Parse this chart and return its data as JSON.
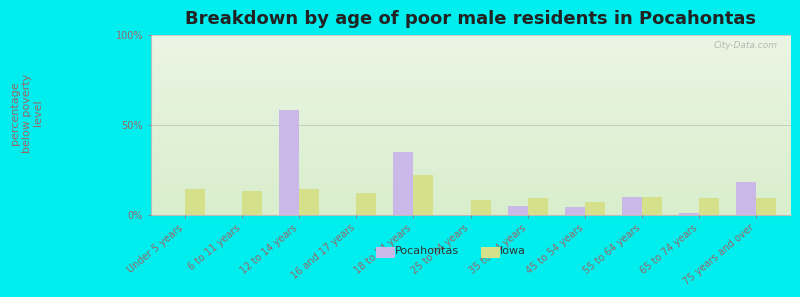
{
  "title": "Breakdown by age of poor male residents in Pocahontas",
  "ylabel": "percentage\nbelow poverty\nlevel",
  "categories": [
    "Under 5 years",
    "6 to 11 years",
    "12 to 14 years",
    "16 and 17 years",
    "18 to 24 years",
    "25 to 34 years",
    "35 to 44 years",
    "45 to 54 years",
    "55 to 64 years",
    "65 to 74 years",
    "75 years and over"
  ],
  "pocahontas": [
    0,
    0,
    58,
    0,
    35,
    0,
    5,
    4,
    10,
    1,
    18
  ],
  "iowa": [
    14,
    13,
    14,
    12,
    22,
    8,
    9,
    7,
    10,
    9,
    9
  ],
  "ylim": [
    0,
    100
  ],
  "yticks": [
    0,
    50,
    100
  ],
  "ytick_labels": [
    "0%",
    "50%",
    "100%"
  ],
  "bar_width": 0.35,
  "pocahontas_color": "#c9b8e8",
  "iowa_color": "#d4e08a",
  "bg_top_color": "#eaf4e2",
  "bg_bottom_color": "#d8eecc",
  "outer_bg": "#00eeee",
  "title_fontsize": 13,
  "axis_label_fontsize": 8,
  "tick_fontsize": 7,
  "label_color": "#996666",
  "watermark": "City-Data.com"
}
